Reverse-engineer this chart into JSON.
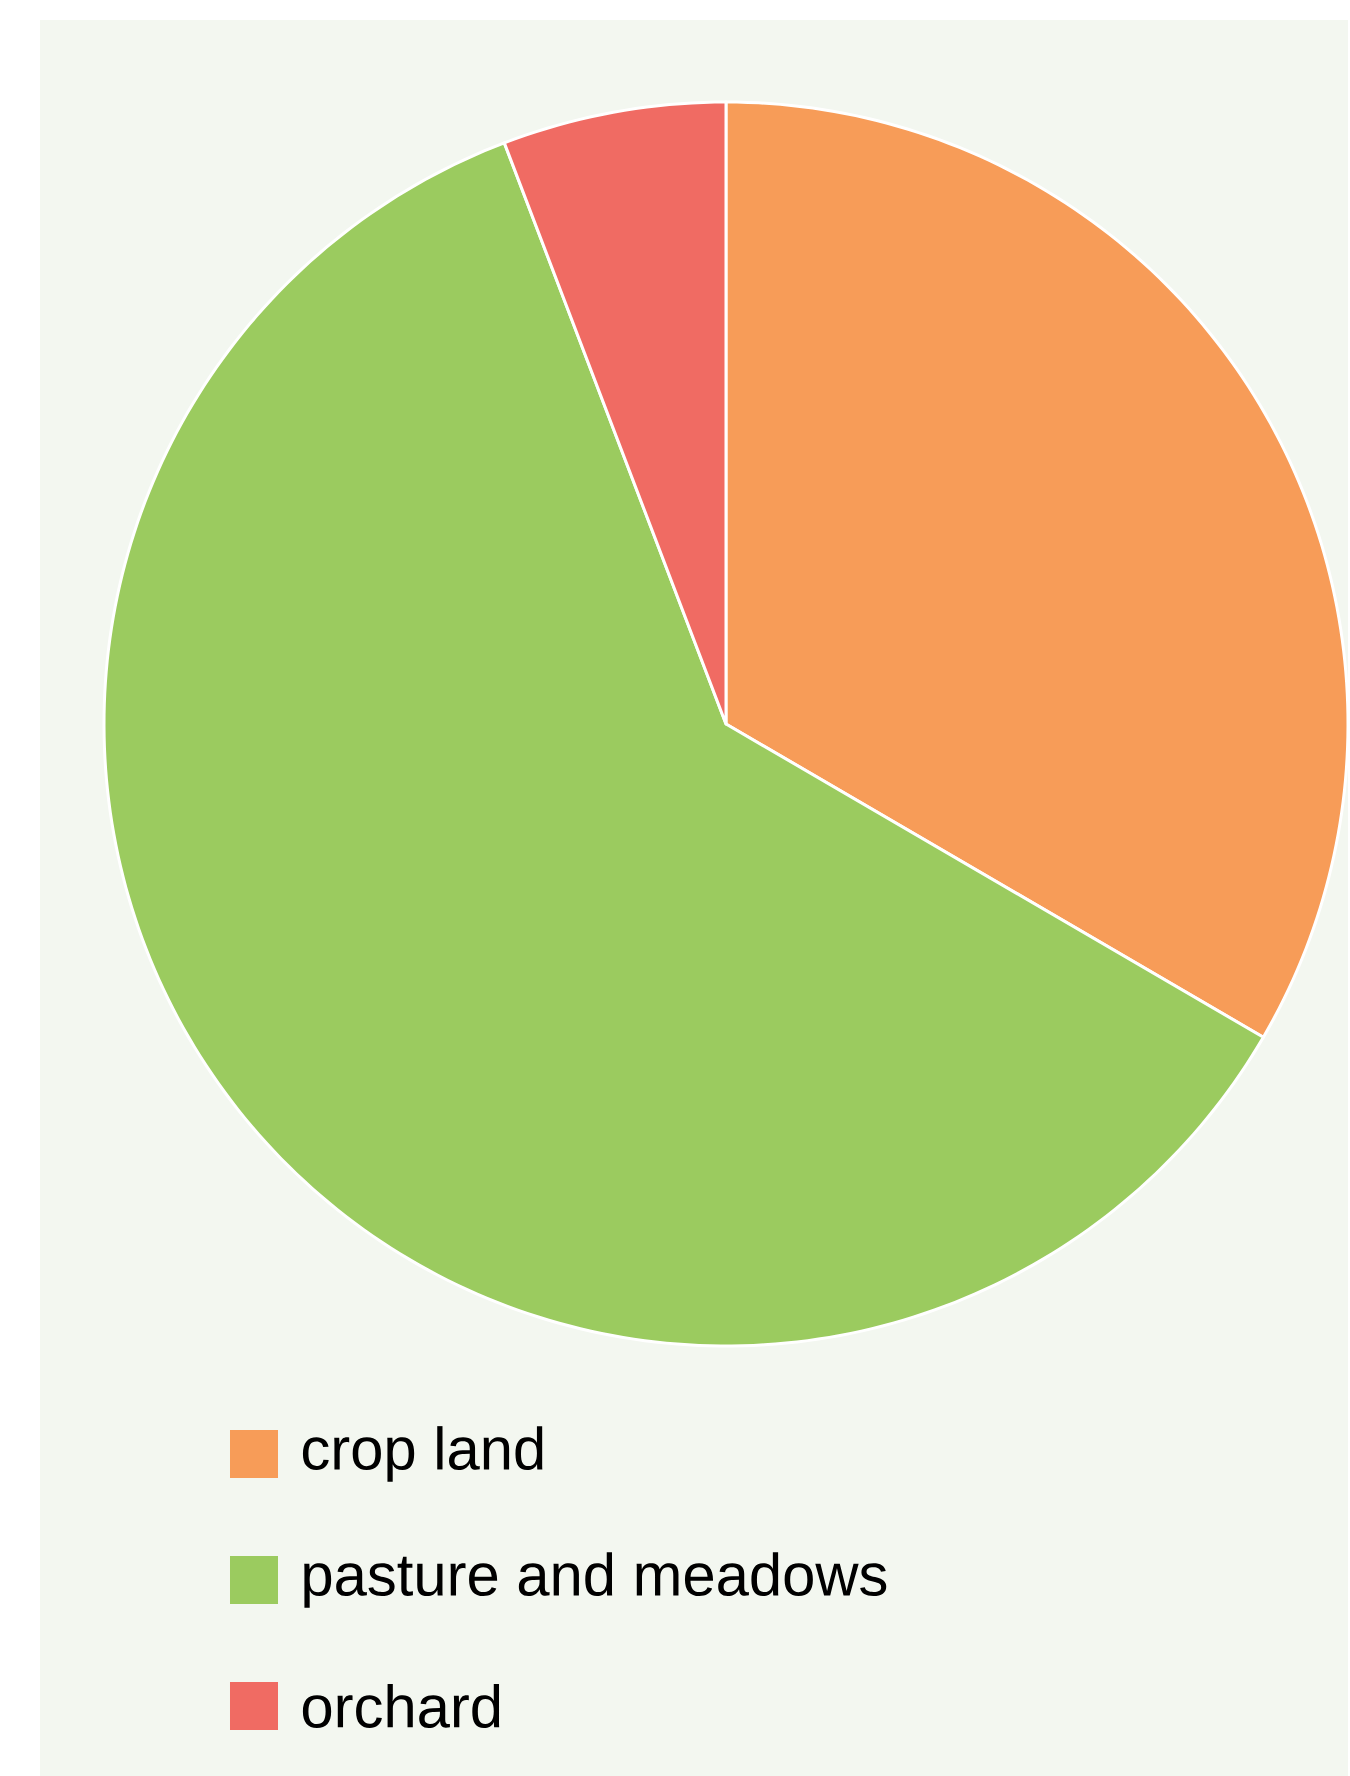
{
  "chart_data": {
    "type": "pie",
    "categories": [
      "crop land",
      "pasture and meadows",
      "orchard"
    ],
    "values": [
      33.4,
      60.8,
      5.8
    ],
    "colors": [
      "#f79c58",
      "#9bcb5f",
      "#f06b63"
    ],
    "legend": "bottom"
  }
}
